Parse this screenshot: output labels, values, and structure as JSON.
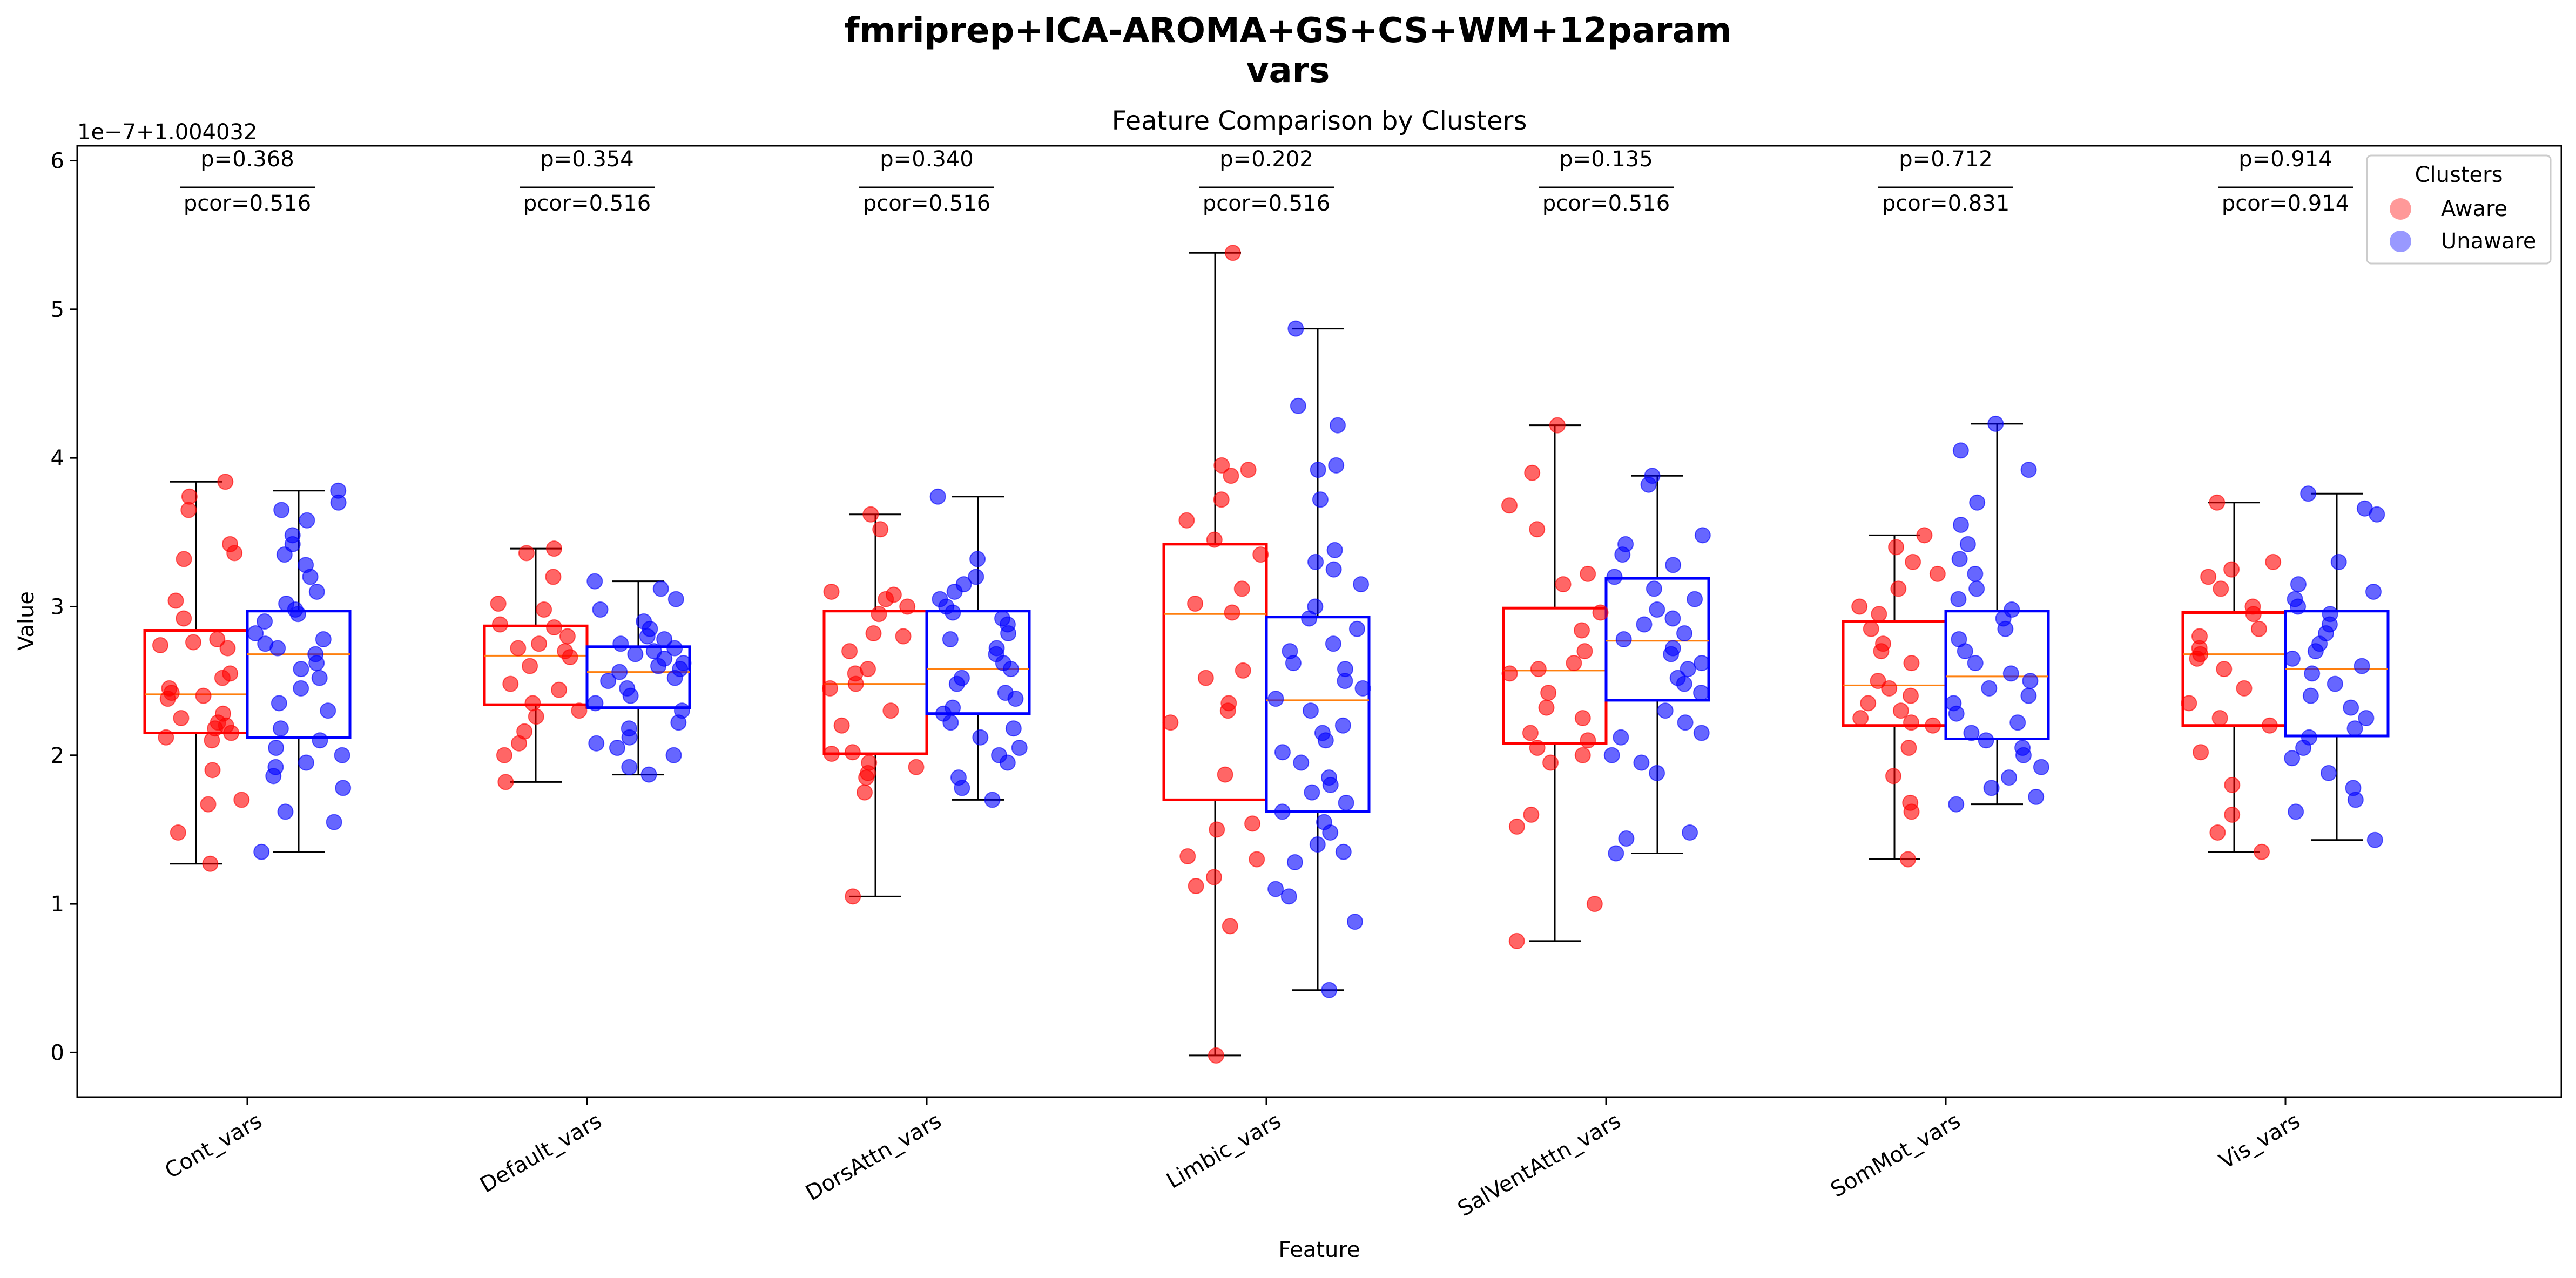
{
  "chart_data": {
    "type": "box",
    "suptitle_line1": "fmriprep+ICA-AROMA+GS+CS+WM+12param",
    "suptitle_line2": "vars",
    "title": "Feature Comparison by Clusters",
    "xlabel": "Feature",
    "ylabel": "Value",
    "offset_text": "1e−7+1.004032",
    "ylim": [
      -0.3,
      6.1
    ],
    "yticks": [
      0,
      1,
      2,
      3,
      4,
      5,
      6
    ],
    "categories": [
      "Cont_vars",
      "Default_vars",
      "DorsAttn_vars",
      "Limbic_vars",
      "SalVentAttn_vars",
      "SomMot_vars",
      "Vis_vars"
    ],
    "annotations": [
      {
        "p": "p=0.368",
        "pcor": "pcor=0.516"
      },
      {
        "p": "p=0.354",
        "pcor": "pcor=0.516"
      },
      {
        "p": "p=0.340",
        "pcor": "pcor=0.516"
      },
      {
        "p": "p=0.202",
        "pcor": "pcor=0.516"
      },
      {
        "p": "p=0.135",
        "pcor": "pcor=0.516"
      },
      {
        "p": "p=0.712",
        "pcor": "pcor=0.831"
      },
      {
        "p": "p=0.914",
        "pcor": "pcor=0.914"
      }
    ],
    "legend": {
      "title": "Clusters",
      "placement": "top-right"
    },
    "colors": {
      "Aware": "#ff0000",
      "Unaware": "#0000ff",
      "median": "#ff7f0e"
    },
    "series": [
      {
        "name": "Aware",
        "boxes": [
          {
            "whislo": 1.27,
            "q1": 2.15,
            "med": 2.41,
            "q3": 2.84,
            "whishi": 3.84
          },
          {
            "whislo": 1.82,
            "q1": 2.34,
            "med": 2.67,
            "q3": 2.87,
            "whishi": 3.39
          },
          {
            "whislo": 1.05,
            "q1": 2.01,
            "med": 2.48,
            "q3": 2.97,
            "whishi": 3.62
          },
          {
            "whislo": -0.02,
            "q1": 1.7,
            "med": 2.95,
            "q3": 3.42,
            "whishi": 5.38
          },
          {
            "whislo": 0.75,
            "q1": 2.08,
            "med": 2.57,
            "q3": 2.99,
            "whishi": 4.22
          },
          {
            "whislo": 1.3,
            "q1": 2.2,
            "med": 2.47,
            "q3": 2.9,
            "whishi": 3.48
          },
          {
            "whislo": 1.35,
            "q1": 2.2,
            "med": 2.68,
            "q3": 2.96,
            "whishi": 3.7
          }
        ],
        "points": [
          [
            1.27,
            1.48,
            1.67,
            1.7,
            1.9,
            2.1,
            2.12,
            2.15,
            2.18,
            2.2,
            2.22,
            2.25,
            2.28,
            2.38,
            2.4,
            2.42,
            2.45,
            2.52,
            2.55,
            2.72,
            2.74,
            2.76,
            2.78,
            2.92,
            3.04,
            3.32,
            3.36,
            3.42,
            3.65,
            3.74,
            3.84
          ],
          [
            1.82,
            2.0,
            2.08,
            2.16,
            2.26,
            2.3,
            2.35,
            2.44,
            2.48,
            2.6,
            2.66,
            2.7,
            2.72,
            2.75,
            2.8,
            2.86,
            2.88,
            2.98,
            3.02,
            3.2,
            3.36,
            3.39
          ],
          [
            1.05,
            1.75,
            1.85,
            1.88,
            1.92,
            1.95,
            2.01,
            2.02,
            2.2,
            2.3,
            2.45,
            2.48,
            2.55,
            2.58,
            2.7,
            2.8,
            2.82,
            2.95,
            3.0,
            3.05,
            3.08,
            3.1,
            3.52,
            3.62
          ],
          [
            -0.02,
            0.85,
            1.12,
            1.18,
            1.3,
            1.32,
            1.5,
            1.54,
            1.87,
            2.22,
            2.3,
            2.35,
            2.52,
            2.57,
            2.96,
            3.02,
            3.12,
            3.35,
            3.45,
            3.58,
            3.72,
            3.88,
            3.92,
            3.95,
            5.38
          ],
          [
            0.75,
            1.0,
            1.52,
            1.6,
            1.95,
            2.0,
            2.05,
            2.1,
            2.15,
            2.25,
            2.32,
            2.42,
            2.55,
            2.58,
            2.62,
            2.7,
            2.84,
            2.96,
            3.15,
            3.22,
            3.52,
            3.68,
            3.9,
            4.22
          ],
          [
            1.3,
            1.62,
            1.68,
            1.86,
            2.05,
            2.2,
            2.22,
            2.25,
            2.3,
            2.35,
            2.4,
            2.45,
            2.5,
            2.62,
            2.7,
            2.75,
            2.85,
            2.95,
            3.0,
            3.12,
            3.22,
            3.3,
            3.4,
            3.48
          ],
          [
            1.35,
            1.48,
            1.6,
            1.8,
            2.02,
            2.2,
            2.25,
            2.35,
            2.45,
            2.58,
            2.65,
            2.68,
            2.72,
            2.8,
            2.85,
            2.95,
            3.0,
            3.12,
            3.2,
            3.25,
            3.3,
            3.7
          ]
        ]
      },
      {
        "name": "Unaware",
        "boxes": [
          {
            "whislo": 1.35,
            "q1": 2.12,
            "med": 2.68,
            "q3": 2.97,
            "whishi": 3.78
          },
          {
            "whislo": 1.87,
            "q1": 2.32,
            "med": 2.56,
            "q3": 2.73,
            "whishi": 3.17
          },
          {
            "whislo": 1.7,
            "q1": 2.28,
            "med": 2.58,
            "q3": 2.97,
            "whishi": 3.74
          },
          {
            "whislo": 0.42,
            "q1": 1.62,
            "med": 2.37,
            "q3": 2.93,
            "whishi": 4.87
          },
          {
            "whislo": 1.34,
            "q1": 2.37,
            "med": 2.77,
            "q3": 3.19,
            "whishi": 3.88
          },
          {
            "whislo": 1.67,
            "q1": 2.11,
            "med": 2.53,
            "q3": 2.97,
            "whishi": 4.23
          },
          {
            "whislo": 1.43,
            "q1": 2.13,
            "med": 2.58,
            "q3": 2.97,
            "whishi": 3.76
          }
        ],
        "points": [
          [
            1.35,
            1.55,
            1.62,
            1.78,
            1.86,
            1.92,
            1.95,
            2.0,
            2.05,
            2.1,
            2.18,
            2.3,
            2.35,
            2.45,
            2.52,
            2.58,
            2.62,
            2.68,
            2.72,
            2.75,
            2.78,
            2.82,
            2.9,
            2.95,
            2.98,
            3.02,
            3.1,
            3.2,
            3.28,
            3.35,
            3.42,
            3.48,
            3.58,
            3.65,
            3.7,
            3.78
          ],
          [
            1.87,
            1.92,
            2.0,
            2.05,
            2.08,
            2.12,
            2.18,
            2.22,
            2.3,
            2.35,
            2.4,
            2.45,
            2.5,
            2.52,
            2.56,
            2.58,
            2.6,
            2.62,
            2.65,
            2.68,
            2.7,
            2.72,
            2.75,
            2.78,
            2.8,
            2.85,
            2.9,
            2.98,
            3.05,
            3.12,
            3.17
          ],
          [
            1.7,
            1.85,
            1.95,
            2.0,
            2.05,
            2.12,
            2.18,
            2.22,
            2.28,
            2.32,
            2.38,
            2.42,
            2.48,
            2.52,
            2.58,
            2.62,
            2.68,
            2.72,
            2.78,
            2.82,
            2.88,
            2.92,
            2.96,
            3.0,
            3.05,
            3.1,
            3.15,
            3.2,
            3.32,
            3.74,
            1.78
          ],
          [
            0.42,
            0.88,
            1.05,
            1.1,
            1.28,
            1.35,
            1.4,
            1.48,
            1.55,
            1.62,
            1.68,
            1.75,
            1.8,
            1.85,
            1.95,
            2.02,
            2.1,
            2.15,
            2.2,
            2.3,
            2.38,
            2.45,
            2.5,
            2.58,
            2.62,
            2.7,
            2.75,
            2.85,
            2.92,
            3.0,
            3.15,
            3.25,
            3.3,
            3.38,
            3.72,
            3.92,
            3.95,
            4.22,
            4.35,
            4.87
          ],
          [
            1.34,
            1.44,
            1.48,
            1.88,
            1.95,
            2.0,
            2.12,
            2.15,
            2.22,
            2.3,
            2.42,
            2.48,
            2.52,
            2.58,
            2.62,
            2.68,
            2.72,
            2.78,
            2.82,
            2.88,
            2.92,
            2.98,
            3.05,
            3.12,
            3.2,
            3.28,
            3.35,
            3.42,
            3.48,
            3.82,
            3.88
          ],
          [
            1.67,
            1.72,
            1.78,
            1.85,
            1.92,
            2.0,
            2.05,
            2.1,
            2.15,
            2.22,
            2.28,
            2.35,
            2.4,
            2.45,
            2.5,
            2.55,
            2.62,
            2.7,
            2.78,
            2.85,
            2.92,
            2.98,
            3.05,
            3.12,
            3.22,
            3.32,
            3.42,
            3.55,
            3.7,
            3.92,
            4.05,
            4.23
          ],
          [
            1.43,
            1.62,
            1.7,
            1.78,
            1.88,
            1.98,
            2.05,
            2.12,
            2.18,
            2.25,
            2.32,
            2.4,
            2.48,
            2.55,
            2.6,
            2.65,
            2.7,
            2.75,
            2.82,
            2.88,
            2.95,
            3.0,
            3.05,
            3.1,
            3.15,
            3.3,
            3.62,
            3.66,
            3.76
          ]
        ]
      }
    ]
  }
}
